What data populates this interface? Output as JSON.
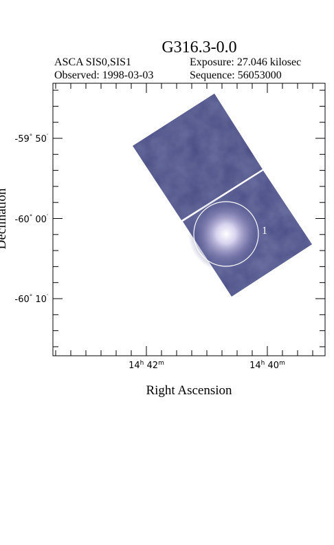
{
  "title": "G316.3-0.0",
  "header": {
    "instrument": "ASCA SIS0,SIS1",
    "exposure": "Exposure: 27.046 kilosec",
    "observed": "Observed: 1998-03-03",
    "sequence": "Sequence: 56053000"
  },
  "axes": {
    "x_label": "Right Ascension",
    "y_label": "Declination",
    "x_ticks": [
      [
        "14",
        "h",
        " 42",
        "m"
      ],
      [
        "14",
        "h",
        " 40",
        "m"
      ]
    ],
    "y_ticks": [
      [
        "-59",
        "°",
        " 50",
        "′"
      ],
      [
        "-60",
        "°",
        " 00",
        "′"
      ],
      [
        "-60",
        "°",
        " 10",
        "′"
      ]
    ]
  },
  "regions": [
    {
      "label": "1"
    }
  ]
}
